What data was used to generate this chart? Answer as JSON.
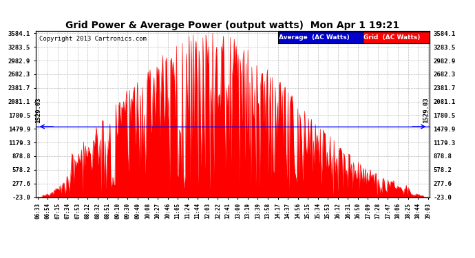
{
  "title": "Grid Power & Average Power (output watts)  Mon Apr 1 19:21",
  "copyright": "Copyright 2013 Cartronics.com",
  "average_value": 1529.03,
  "y_min": -23.0,
  "y_max": 3584.1,
  "yticks": [
    -23.0,
    277.6,
    578.2,
    878.8,
    1179.3,
    1479.9,
    1780.5,
    2081.1,
    2381.7,
    2682.3,
    2982.9,
    3283.5,
    3584.1
  ],
  "bar_color": "#FF0000",
  "fill_color": "#FF0000",
  "avg_line_color": "#0000FF",
  "background_color": "#FFFFFF",
  "grid_color": "#AAAAAA",
  "legend_avg_bg": "#0000CD",
  "legend_grid_bg": "#FF0000",
  "legend_text_avg": "Average  (AC Watts)",
  "legend_text_grid": "Grid  (AC Watts)",
  "xtick_labels": [
    "06:33",
    "06:54",
    "07:15",
    "07:34",
    "07:53",
    "08:12",
    "08:32",
    "08:51",
    "09:10",
    "09:30",
    "09:49",
    "10:08",
    "10:27",
    "10:46",
    "11:05",
    "11:24",
    "11:44",
    "12:03",
    "12:22",
    "12:41",
    "13:00",
    "13:19",
    "13:39",
    "13:58",
    "14:17",
    "14:37",
    "14:56",
    "15:15",
    "15:34",
    "15:53",
    "16:12",
    "16:31",
    "16:50",
    "17:09",
    "17:28",
    "17:47",
    "18:06",
    "18:25",
    "18:44",
    "19:03"
  ],
  "num_points": 400,
  "figwidth": 6.9,
  "figheight": 3.75,
  "dpi": 100
}
